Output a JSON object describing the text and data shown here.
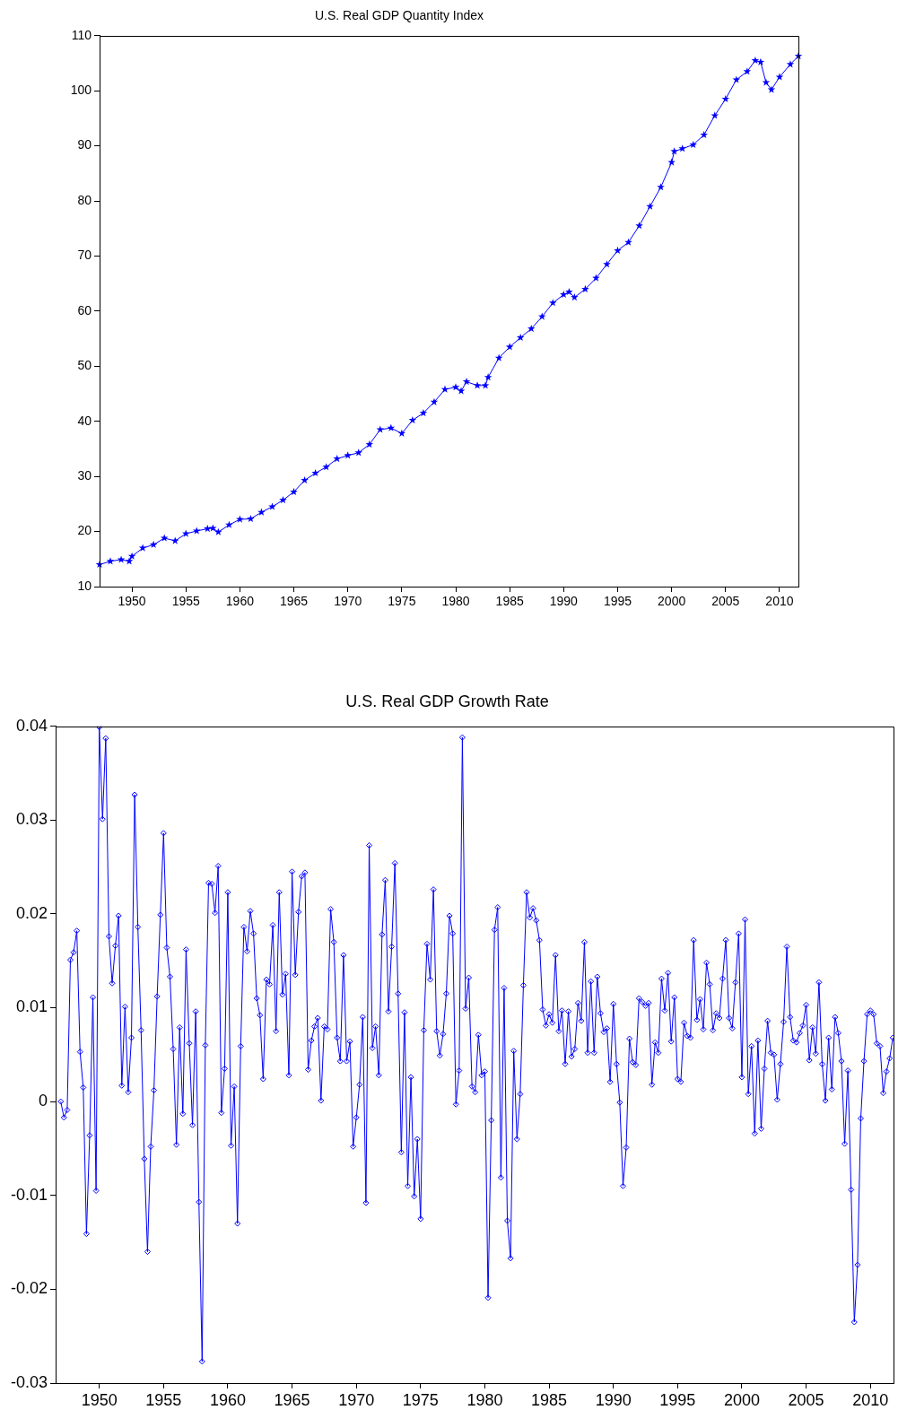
{
  "chart_data": [
    {
      "type": "line",
      "title": "U.S. Real GDP Quantity Index",
      "marker": "star",
      "grid": false,
      "xlim": [
        1947,
        2011.75
      ],
      "ylim": [
        10,
        110
      ],
      "xticks": [
        1950,
        1955,
        1960,
        1965,
        1970,
        1975,
        1980,
        1985,
        1990,
        1995,
        2000,
        2005,
        2010
      ],
      "yticks": [
        10,
        20,
        30,
        40,
        50,
        60,
        70,
        80,
        90,
        100,
        110
      ],
      "series": [
        {
          "color": "#0000ff",
          "x": [
            1947,
            1948,
            1949,
            1949.75,
            1950,
            1951,
            1952,
            1953,
            1954,
            1955,
            1956,
            1957,
            1957.5,
            1958,
            1959,
            1960,
            1961,
            1962,
            1963,
            1964,
            1965,
            1966,
            1967,
            1968,
            1969,
            1970,
            1971,
            1972,
            1973,
            1974,
            1975,
            1976,
            1977,
            1978,
            1979,
            1980,
            1980.5,
            1981,
            1982,
            1982.75,
            1983,
            1984,
            1985,
            1986,
            1987,
            1988,
            1989,
            1990,
            1990.5,
            1991,
            1992,
            1993,
            1994,
            1995,
            1996,
            1997,
            1998,
            1999,
            2000,
            2000.25,
            2001,
            2002,
            2003,
            2004,
            2005,
            2006,
            2007,
            2007.75,
            2008.25,
            2008.75,
            2009.25,
            2010,
            2011,
            2011.75
          ],
          "values": [
            14,
            14.6,
            14.9,
            14.6,
            15.5,
            17,
            17.6,
            18.8,
            18.3,
            19.6,
            20.1,
            20.5,
            20.6,
            19.9,
            21.2,
            22.2,
            22.3,
            23.5,
            24.5,
            25.7,
            27.2,
            29.3,
            30.6,
            31.7,
            33.2,
            33.8,
            34.3,
            35.8,
            38.5,
            38.8,
            37.8,
            40.2,
            41.5,
            43.5,
            45.8,
            46.2,
            45.5,
            47.2,
            46.5,
            46.5,
            48,
            51.5,
            53.5,
            55.2,
            56.8,
            59,
            61.5,
            63,
            63.5,
            62.5,
            64,
            66,
            68.5,
            71,
            72.5,
            75.5,
            79,
            82.5,
            87,
            89,
            89.5,
            90.2,
            92,
            95.5,
            98.5,
            102,
            103.5,
            105.5,
            105.2,
            101.5,
            100.2,
            102.5,
            104.8,
            106.3
          ]
        }
      ]
    },
    {
      "type": "line",
      "title": "U.S. Real GDP Growth Rate",
      "marker": "diamond",
      "grid": false,
      "xlim": [
        1946.6,
        2011.8
      ],
      "ylim": [
        -0.03,
        0.04
      ],
      "xticks": [
        1950,
        1955,
        1960,
        1965,
        1970,
        1975,
        1980,
        1985,
        1990,
        1995,
        2000,
        2005,
        2010
      ],
      "yticks": [
        -0.03,
        -0.02,
        -0.01,
        0,
        0.01,
        0.02,
        0.03,
        0.04
      ],
      "series": [
        {
          "color": "#0000ff",
          "x": [
            1947,
            1947.25,
            1947.5,
            1947.75,
            1948,
            1948.25,
            1948.5,
            1948.75,
            1949,
            1949.25,
            1949.5,
            1949.75,
            1950,
            1950.25,
            1950.5,
            1950.75,
            1951,
            1951.25,
            1951.5,
            1951.75,
            1952,
            1952.25,
            1952.5,
            1952.75,
            1953,
            1953.25,
            1953.5,
            1953.75,
            1954,
            1954.25,
            1954.5,
            1954.75,
            1955,
            1955.25,
            1955.5,
            1955.75,
            1956,
            1956.25,
            1956.5,
            1956.75,
            1957,
            1957.25,
            1957.5,
            1957.75,
            1958,
            1958.25,
            1958.5,
            1958.75,
            1959,
            1959.25,
            1959.5,
            1959.75,
            1960,
            1960.25,
            1960.5,
            1960.75,
            1961,
            1961.25,
            1961.5,
            1961.75,
            1962,
            1962.25,
            1962.5,
            1962.75,
            1963,
            1963.25,
            1963.5,
            1963.75,
            1964,
            1964.25,
            1964.5,
            1964.75,
            1965,
            1965.25,
            1965.5,
            1965.75,
            1966,
            1966.25,
            1966.5,
            1966.75,
            1967,
            1967.25,
            1967.5,
            1967.75,
            1968,
            1968.25,
            1968.5,
            1968.75,
            1969,
            1969.25,
            1969.5,
            1969.75,
            1970,
            1970.25,
            1970.5,
            1970.75,
            1971,
            1971.25,
            1971.5,
            1971.75,
            1972,
            1972.25,
            1972.5,
            1972.75,
            1973,
            1973.25,
            1973.5,
            1973.75,
            1974,
            1974.25,
            1974.5,
            1974.75,
            1975,
            1975.25,
            1975.5,
            1975.75,
            1976,
            1976.25,
            1976.5,
            1976.75,
            1977,
            1977.25,
            1977.5,
            1977.75,
            1978,
            1978.25,
            1978.5,
            1978.75,
            1979,
            1979.25,
            1979.5,
            1979.75,
            1980,
            1980.25,
            1980.5,
            1980.75,
            1981,
            1981.25,
            1981.5,
            1981.75,
            1982,
            1982.25,
            1982.5,
            1982.75,
            1983,
            1983.25,
            1983.5,
            1983.75,
            1984,
            1984.25,
            1984.5,
            1984.75,
            1985,
            1985.25,
            1985.5,
            1985.75,
            1986,
            1986.25,
            1986.5,
            1986.75,
            1987,
            1987.25,
            1987.5,
            1987.75,
            1988,
            1988.25,
            1988.5,
            1988.75,
            1989,
            1989.25,
            1989.5,
            1989.75,
            1990,
            1990.25,
            1990.5,
            1990.75,
            1991,
            1991.25,
            1991.5,
            1991.75,
            1992,
            1992.25,
            1992.5,
            1992.75,
            1993,
            1993.25,
            1993.5,
            1993.75,
            1994,
            1994.25,
            1994.5,
            1994.75,
            1995,
            1995.25,
            1995.5,
            1995.75,
            1996,
            1996.25,
            1996.5,
            1996.75,
            1997,
            1997.25,
            1997.5,
            1997.75,
            1998,
            1998.25,
            1998.5,
            1998.75,
            1999,
            1999.25,
            1999.5,
            1999.75,
            2000,
            2000.25,
            2000.5,
            2000.75,
            2001,
            2001.25,
            2001.5,
            2001.75,
            2002,
            2002.25,
            2002.5,
            2002.75,
            2003,
            2003.25,
            2003.5,
            2003.75,
            2004,
            2004.25,
            2004.5,
            2004.75,
            2005,
            2005.25,
            2005.5,
            2005.75,
            2006,
            2006.25,
            2006.5,
            2006.75,
            2007,
            2007.25,
            2007.5,
            2007.75,
            2008,
            2008.25,
            2008.5,
            2008.75,
            2009,
            2009.25,
            2009.5,
            2009.75,
            2010,
            2010.25,
            2010.5,
            2010.75,
            2011,
            2011.25,
            2011.5,
            2011.75
          ],
          "values": [
            0,
            -0.0017,
            -0.0009,
            0.0151,
            0.0159,
            0.0182,
            0.0053,
            0.0015,
            -0.0141,
            -0.0036,
            0.0111,
            -0.0095,
            0.0399,
            0.0301,
            0.0387,
            0.0176,
            0.0126,
            0.0166,
            0.0198,
            0.0017,
            0.0101,
            0.001,
            0.0068,
            0.0327,
            0.0186,
            0.0076,
            -0.0061,
            -0.016,
            -0.0048,
            0.0012,
            0.0112,
            0.0199,
            0.0286,
            0.0164,
            0.0133,
            0.0056,
            -0.0046,
            0.0079,
            -0.0013,
            0.0162,
            0.0062,
            -0.0025,
            0.0096,
            -0.0107,
            -0.0277,
            0.006,
            0.0233,
            0.0232,
            0.0201,
            0.0251,
            -0.0012,
            0.0035,
            0.0223,
            -0.0047,
            0.0016,
            -0.013,
            0.0059,
            0.0186,
            0.016,
            0.0203,
            0.0179,
            0.011,
            0.0092,
            0.0024,
            0.013,
            0.0125,
            0.0188,
            0.0075,
            0.0223,
            0.0114,
            0.0136,
            0.0028,
            0.0245,
            0.0135,
            0.0202,
            0.024,
            0.0244,
            0.0034,
            0.0065,
            0.008,
            0.0089,
            0.0001,
            0.008,
            0.0077,
            0.0205,
            0.017,
            0.0068,
            0.0043,
            0.0156,
            0.0043,
            0.0064,
            -0.0048,
            -0.0017,
            0.0018,
            0.009,
            -0.0108,
            0.0273,
            0.0057,
            0.008,
            0.0028,
            0.0178,
            0.0236,
            0.0096,
            0.0165,
            0.0254,
            0.0115,
            -0.0054,
            0.0095,
            -0.009,
            0.0026,
            -0.0101,
            -0.004,
            -0.0125,
            0.0076,
            0.0168,
            0.013,
            0.0226,
            0.0075,
            0.0049,
            0.0072,
            0.0115,
            0.0198,
            0.0179,
            -0.0003,
            0.0033,
            0.0388,
            0.0099,
            0.0132,
            0.0016,
            0.001,
            0.0071,
            0.0028,
            0.0032,
            -0.0209,
            -0.002,
            0.0183,
            0.0207,
            -0.0081,
            0.0121,
            -0.0127,
            -0.0167,
            0.0054,
            -0.004,
            0.0008,
            0.0124,
            0.0223,
            0.0196,
            0.0206,
            0.0193,
            0.0172,
            0.0098,
            0.0081,
            0.0093,
            0.0084,
            0.0156,
            0.0075,
            0.0097,
            0.004,
            0.0096,
            0.0048,
            0.0056,
            0.0105,
            0.0086,
            0.017,
            0.0052,
            0.0128,
            0.0052,
            0.0133,
            0.0094,
            0.0074,
            0.0078,
            0.0021,
            0.0104,
            0.004,
            -0.0001,
            -0.009,
            -0.0049,
            0.0067,
            0.0042,
            0.0039,
            0.011,
            0.0106,
            0.0102,
            0.0105,
            0.0018,
            0.0063,
            0.0052,
            0.0131,
            0.0097,
            0.0137,
            0.0064,
            0.0111,
            0.0024,
            0.0021,
            0.0084,
            0.007,
            0.0068,
            0.0172,
            0.0087,
            0.0109,
            0.0077,
            0.0148,
            0.0125,
            0.0076,
            0.0094,
            0.0089,
            0.0131,
            0.0172,
            0.0089,
            0.0078,
            0.0127,
            0.0179,
            0.0026,
            0.0194,
            0.0008,
            0.0059,
            -0.0034,
            0.0065,
            -0.0029,
            0.0035,
            0.0086,
            0.0052,
            0.005,
            0.0002,
            0.004,
            0.0085,
            0.0165,
            0.009,
            0.0065,
            0.0063,
            0.0073,
            0.0081,
            0.0103,
            0.0044,
            0.0079,
            0.0051,
            0.0127,
            0.004,
            0.0001,
            0.0068,
            0.0013,
            0.009,
            0.0073,
            0.0043,
            -0.0045,
            0.0033,
            -0.0094,
            -0.0235,
            -0.0174,
            -0.0018,
            0.0043,
            0.0093,
            0.0097,
            0.0093,
            0.0062,
            0.0059,
            0.0009,
            0.0032,
            0.0046,
            0.0068
          ]
        }
      ]
    }
  ]
}
